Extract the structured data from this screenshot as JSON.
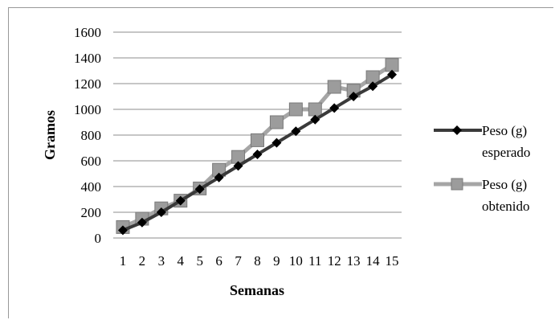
{
  "chart_data": {
    "type": "line",
    "title": "",
    "xlabel": "Semanas",
    "ylabel": "Gramos",
    "categories": [
      "1",
      "2",
      "3",
      "4",
      "5",
      "6",
      "7",
      "8",
      "9",
      "10",
      "11",
      "12",
      "13",
      "14",
      "15"
    ],
    "ylim": [
      0,
      1600
    ],
    "yticks": [
      "0",
      "200",
      "400",
      "600",
      "800",
      "1000",
      "1200",
      "1400",
      "1600"
    ],
    "grid": true,
    "legend_position": "right",
    "series": [
      {
        "name": "Peso (g) esperado",
        "name_lines": [
          "Peso (g)",
          "esperado"
        ],
        "color": "#3a3a3a",
        "marker": "diamond",
        "values": [
          60,
          120,
          200,
          290,
          380,
          470,
          560,
          650,
          740,
          830,
          920,
          1010,
          1100,
          1180,
          1270
        ]
      },
      {
        "name": "Peso (g) obtenido",
        "name_lines": [
          "Peso (g)",
          "obtenido"
        ],
        "color": "#a6a6a6",
        "marker": "square",
        "values": [
          85,
          150,
          230,
          290,
          385,
          530,
          630,
          760,
          900,
          1000,
          1000,
          1175,
          1145,
          1250,
          1345
        ]
      }
    ]
  }
}
